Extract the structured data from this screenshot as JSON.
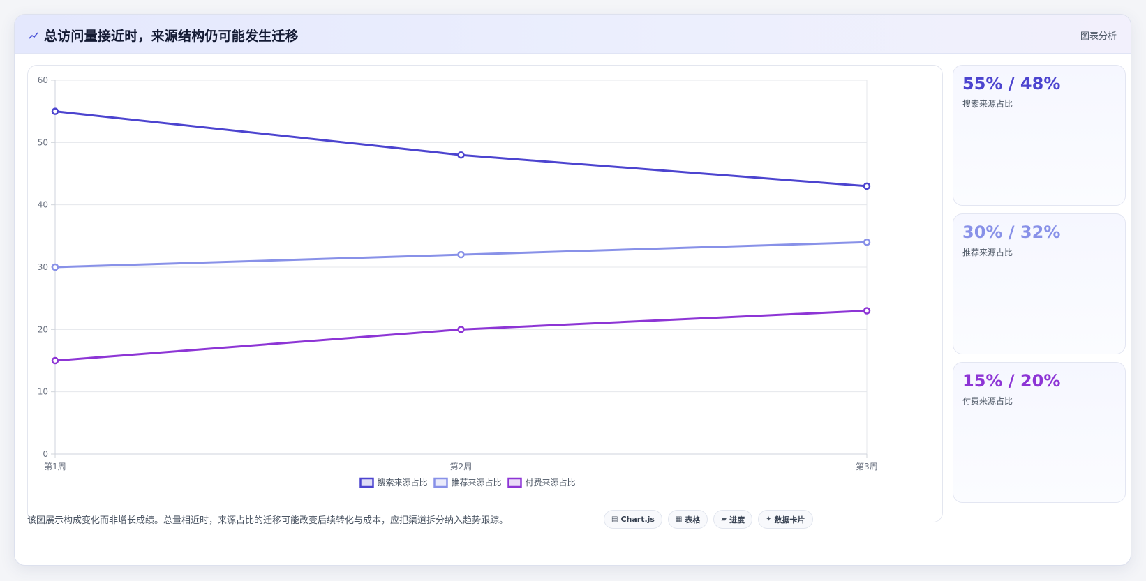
{
  "header": {
    "title": "总访问量接近时，来源结构仍可能发生迁移",
    "tag": "图表分析"
  },
  "colors": {
    "search": "#4c44cf",
    "recommend": "#8891e8",
    "paid": "#8d35d5"
  },
  "chart_data": {
    "type": "line",
    "categories": [
      "第1周",
      "第2周",
      "第3周"
    ],
    "series": [
      {
        "name": "搜索来源占比",
        "values": [
          55,
          48,
          43
        ]
      },
      {
        "name": "推荐来源占比",
        "values": [
          30,
          32,
          34
        ]
      },
      {
        "name": "付费来源占比",
        "values": [
          15,
          20,
          23
        ]
      }
    ],
    "ylim": [
      0,
      60
    ],
    "yticks": [
      "0",
      "10",
      "20",
      "30",
      "40",
      "50",
      "60"
    ],
    "grid": true,
    "legend_position": "bottom"
  },
  "stats": [
    {
      "value": "55% / 48%",
      "label": "搜索来源占比"
    },
    {
      "value": "30% / 32%",
      "label": "推荐来源占比"
    },
    {
      "value": "15% / 20%",
      "label": "付费来源占比"
    }
  ],
  "footer": {
    "text": "该图展示构成变化而非增长成绩。总量相近时，来源占比的迁移可能改变后续转化与成本，应把渠道拆分纳入趋势跟踪。"
  },
  "chips": [
    {
      "icon": "chart-icon",
      "label": "Chart.js"
    },
    {
      "icon": "table-icon",
      "label": "表格"
    },
    {
      "icon": "progress-icon",
      "label": "进度"
    },
    {
      "icon": "sparkle-icon",
      "label": "数据卡片"
    }
  ]
}
